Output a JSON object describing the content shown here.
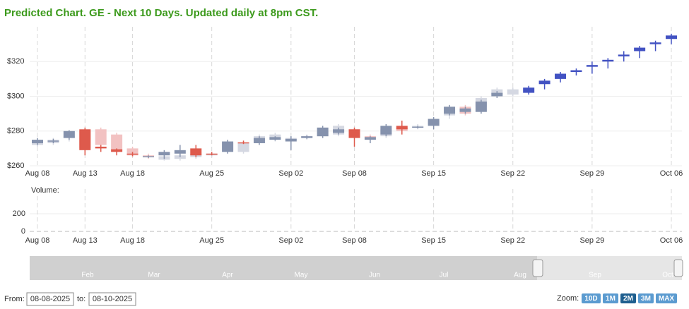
{
  "chart_data": {
    "type": "candlestick",
    "title": "Predicted Chart. GE - Next 10 Days. Updated daily at 8pm CST.",
    "categories": [
      "Aug 08",
      null,
      null,
      "Aug 13",
      null,
      null,
      "Aug 18",
      null,
      null,
      null,
      null,
      "Aug 25",
      null,
      null,
      null,
      null,
      "Sep 02",
      null,
      null,
      null,
      "Sep 08",
      null,
      null,
      null,
      null,
      "Sep 15",
      null,
      null,
      null,
      null,
      "Sep 22",
      null,
      null,
      null,
      null,
      "Sep 29",
      null,
      null,
      null,
      null,
      "Oct 06",
      null
    ],
    "ylim": [
      260,
      340
    ],
    "yticks": [
      {
        "value": 260,
        "label": "$260"
      },
      {
        "value": 280,
        "label": "$280"
      },
      {
        "value": 300,
        "label": "$300"
      },
      {
        "value": 320,
        "label": "$320"
      }
    ],
    "grid": true,
    "series": [
      {
        "color_up": "#d5d8e2",
        "color_down": "#f2c2c2",
        "open": [
          272,
          273,
          276,
          280,
          281,
          278,
          270,
          266,
          263.5,
          264,
          265,
          266,
          269,
          268,
          275,
          275,
          275,
          276,
          277,
          278,
          281,
          277,
          277,
          282,
          282,
          284,
          289,
          294,
          294,
          301,
          301,
          null,
          null,
          null,
          null,
          null,
          null,
          null,
          null,
          null,
          null,
          null
        ],
        "high": [
          274,
          276,
          278,
          281,
          282,
          279,
          271,
          267,
          266,
          267,
          268,
          268,
          274,
          274,
          278,
          279,
          277,
          278,
          281,
          284,
          282,
          278,
          282,
          283,
          284,
          287,
          294,
          295,
          300,
          305,
          305,
          null,
          null,
          null,
          null,
          null,
          null,
          null,
          null,
          null,
          null,
          null
        ],
        "low": [
          271,
          272,
          274,
          268,
          270,
          267,
          265,
          264,
          263,
          263,
          264,
          265,
          268,
          267,
          274,
          274,
          274,
          275,
          276,
          277,
          277,
          276,
          276,
          279,
          281,
          283,
          287,
          289,
          293,
          300,
          300,
          null,
          null,
          null,
          null,
          null,
          null,
          null,
          null,
          null,
          null,
          null
        ],
        "close": [
          274,
          275,
          277,
          270,
          272,
          269,
          266,
          265,
          265.5,
          266,
          267,
          267,
          273,
          273,
          277,
          278,
          276,
          277,
          280,
          283,
          278,
          276.5,
          281,
          280,
          283,
          286,
          293,
          290,
          299,
          304,
          304,
          null,
          null,
          null,
          null,
          null,
          null,
          null,
          null,
          null,
          null,
          null
        ]
      },
      {
        "color_up": "#8592ad",
        "color_down": "#de5a4c",
        "open": [
          273,
          274,
          276,
          281,
          271,
          269.5,
          267,
          265,
          266,
          267,
          270,
          267,
          268,
          273.5,
          273,
          275,
          274,
          276,
          277,
          279,
          281,
          275,
          278,
          283,
          282,
          283,
          290,
          291,
          291,
          300,
          null,
          null,
          null,
          null,
          null,
          null,
          null,
          null,
          null,
          null,
          null,
          null
        ],
        "high": [
          276,
          275.5,
          280.5,
          282,
          272,
          270,
          268,
          266,
          269,
          272,
          272,
          268,
          275,
          274.5,
          277,
          277,
          277,
          277.5,
          283,
          282,
          282,
          277,
          284,
          286,
          283,
          288,
          295,
          294,
          298,
          303,
          null,
          null,
          null,
          null,
          null,
          null,
          null,
          null,
          null,
          null,
          null,
          null
        ],
        "low": [
          272,
          273,
          275,
          266,
          268,
          266,
          265.5,
          264.5,
          264,
          265,
          265,
          266,
          267,
          272.5,
          272,
          274.5,
          269,
          275.5,
          276,
          278,
          271,
          273,
          277,
          278,
          281.5,
          281,
          289,
          290,
          290,
          299,
          null,
          null,
          null,
          null,
          null,
          null,
          null,
          null,
          null,
          null,
          null,
          null
        ],
        "close": [
          275,
          274.5,
          280,
          269,
          270,
          268,
          266.5,
          265.5,
          268,
          269,
          266,
          266.5,
          274,
          273,
          276,
          276.5,
          275.5,
          277,
          282,
          281,
          276,
          276.5,
          283,
          281,
          282.5,
          287,
          294,
          293,
          297,
          302,
          null,
          null,
          null,
          null,
          null,
          null,
          null,
          null,
          null,
          null,
          null,
          null
        ]
      },
      {
        "color_up": "#4252c2",
        "color_down": "#4252c2",
        "open": [
          null,
          null,
          null,
          null,
          null,
          null,
          null,
          null,
          null,
          null,
          null,
          null,
          null,
          null,
          null,
          null,
          null,
          null,
          null,
          null,
          null,
          null,
          null,
          null,
          null,
          null,
          null,
          null,
          null,
          null,
          null,
          302,
          307,
          310,
          314,
          317,
          320,
          323,
          326,
          330,
          333,
          null
        ],
        "high": [
          null,
          null,
          null,
          null,
          null,
          null,
          null,
          null,
          null,
          null,
          null,
          null,
          null,
          null,
          null,
          null,
          null,
          null,
          null,
          null,
          null,
          null,
          null,
          null,
          null,
          null,
          null,
          null,
          null,
          null,
          null,
          306,
          310,
          314,
          316,
          320,
          322,
          326,
          329,
          332,
          336,
          null
        ],
        "low": [
          null,
          null,
          null,
          null,
          null,
          null,
          null,
          null,
          null,
          null,
          null,
          null,
          null,
          null,
          null,
          null,
          null,
          null,
          null,
          null,
          null,
          null,
          null,
          null,
          null,
          null,
          null,
          null,
          null,
          null,
          null,
          301,
          304,
          308,
          312,
          313,
          316,
          320,
          322,
          326,
          330,
          null
        ],
        "close": [
          null,
          null,
          null,
          null,
          null,
          null,
          null,
          null,
          null,
          null,
          null,
          null,
          null,
          null,
          null,
          null,
          null,
          null,
          null,
          null,
          null,
          null,
          null,
          null,
          null,
          null,
          null,
          null,
          null,
          null,
          null,
          305,
          309,
          313,
          315,
          318,
          321,
          324,
          328,
          331,
          335,
          null
        ]
      }
    ],
    "volume": {
      "label": "Volume:",
      "ylim": [
        0,
        480
      ],
      "yticks": [
        0,
        200
      ]
    }
  },
  "navigator": {
    "labels": [
      "Feb",
      "Mar",
      "Apr",
      "May",
      "Jun",
      "Jul",
      "Aug",
      "Sep",
      "Oct"
    ]
  },
  "controls": {
    "from_label": "From:",
    "from": "08-08-2025",
    "to_label": "to:",
    "to": "08-10-2025",
    "zoom_label": "Zoom:",
    "zoom": [
      "10D",
      "1M",
      "2M",
      "3M",
      "MAX"
    ],
    "zoom_active": "2M"
  }
}
